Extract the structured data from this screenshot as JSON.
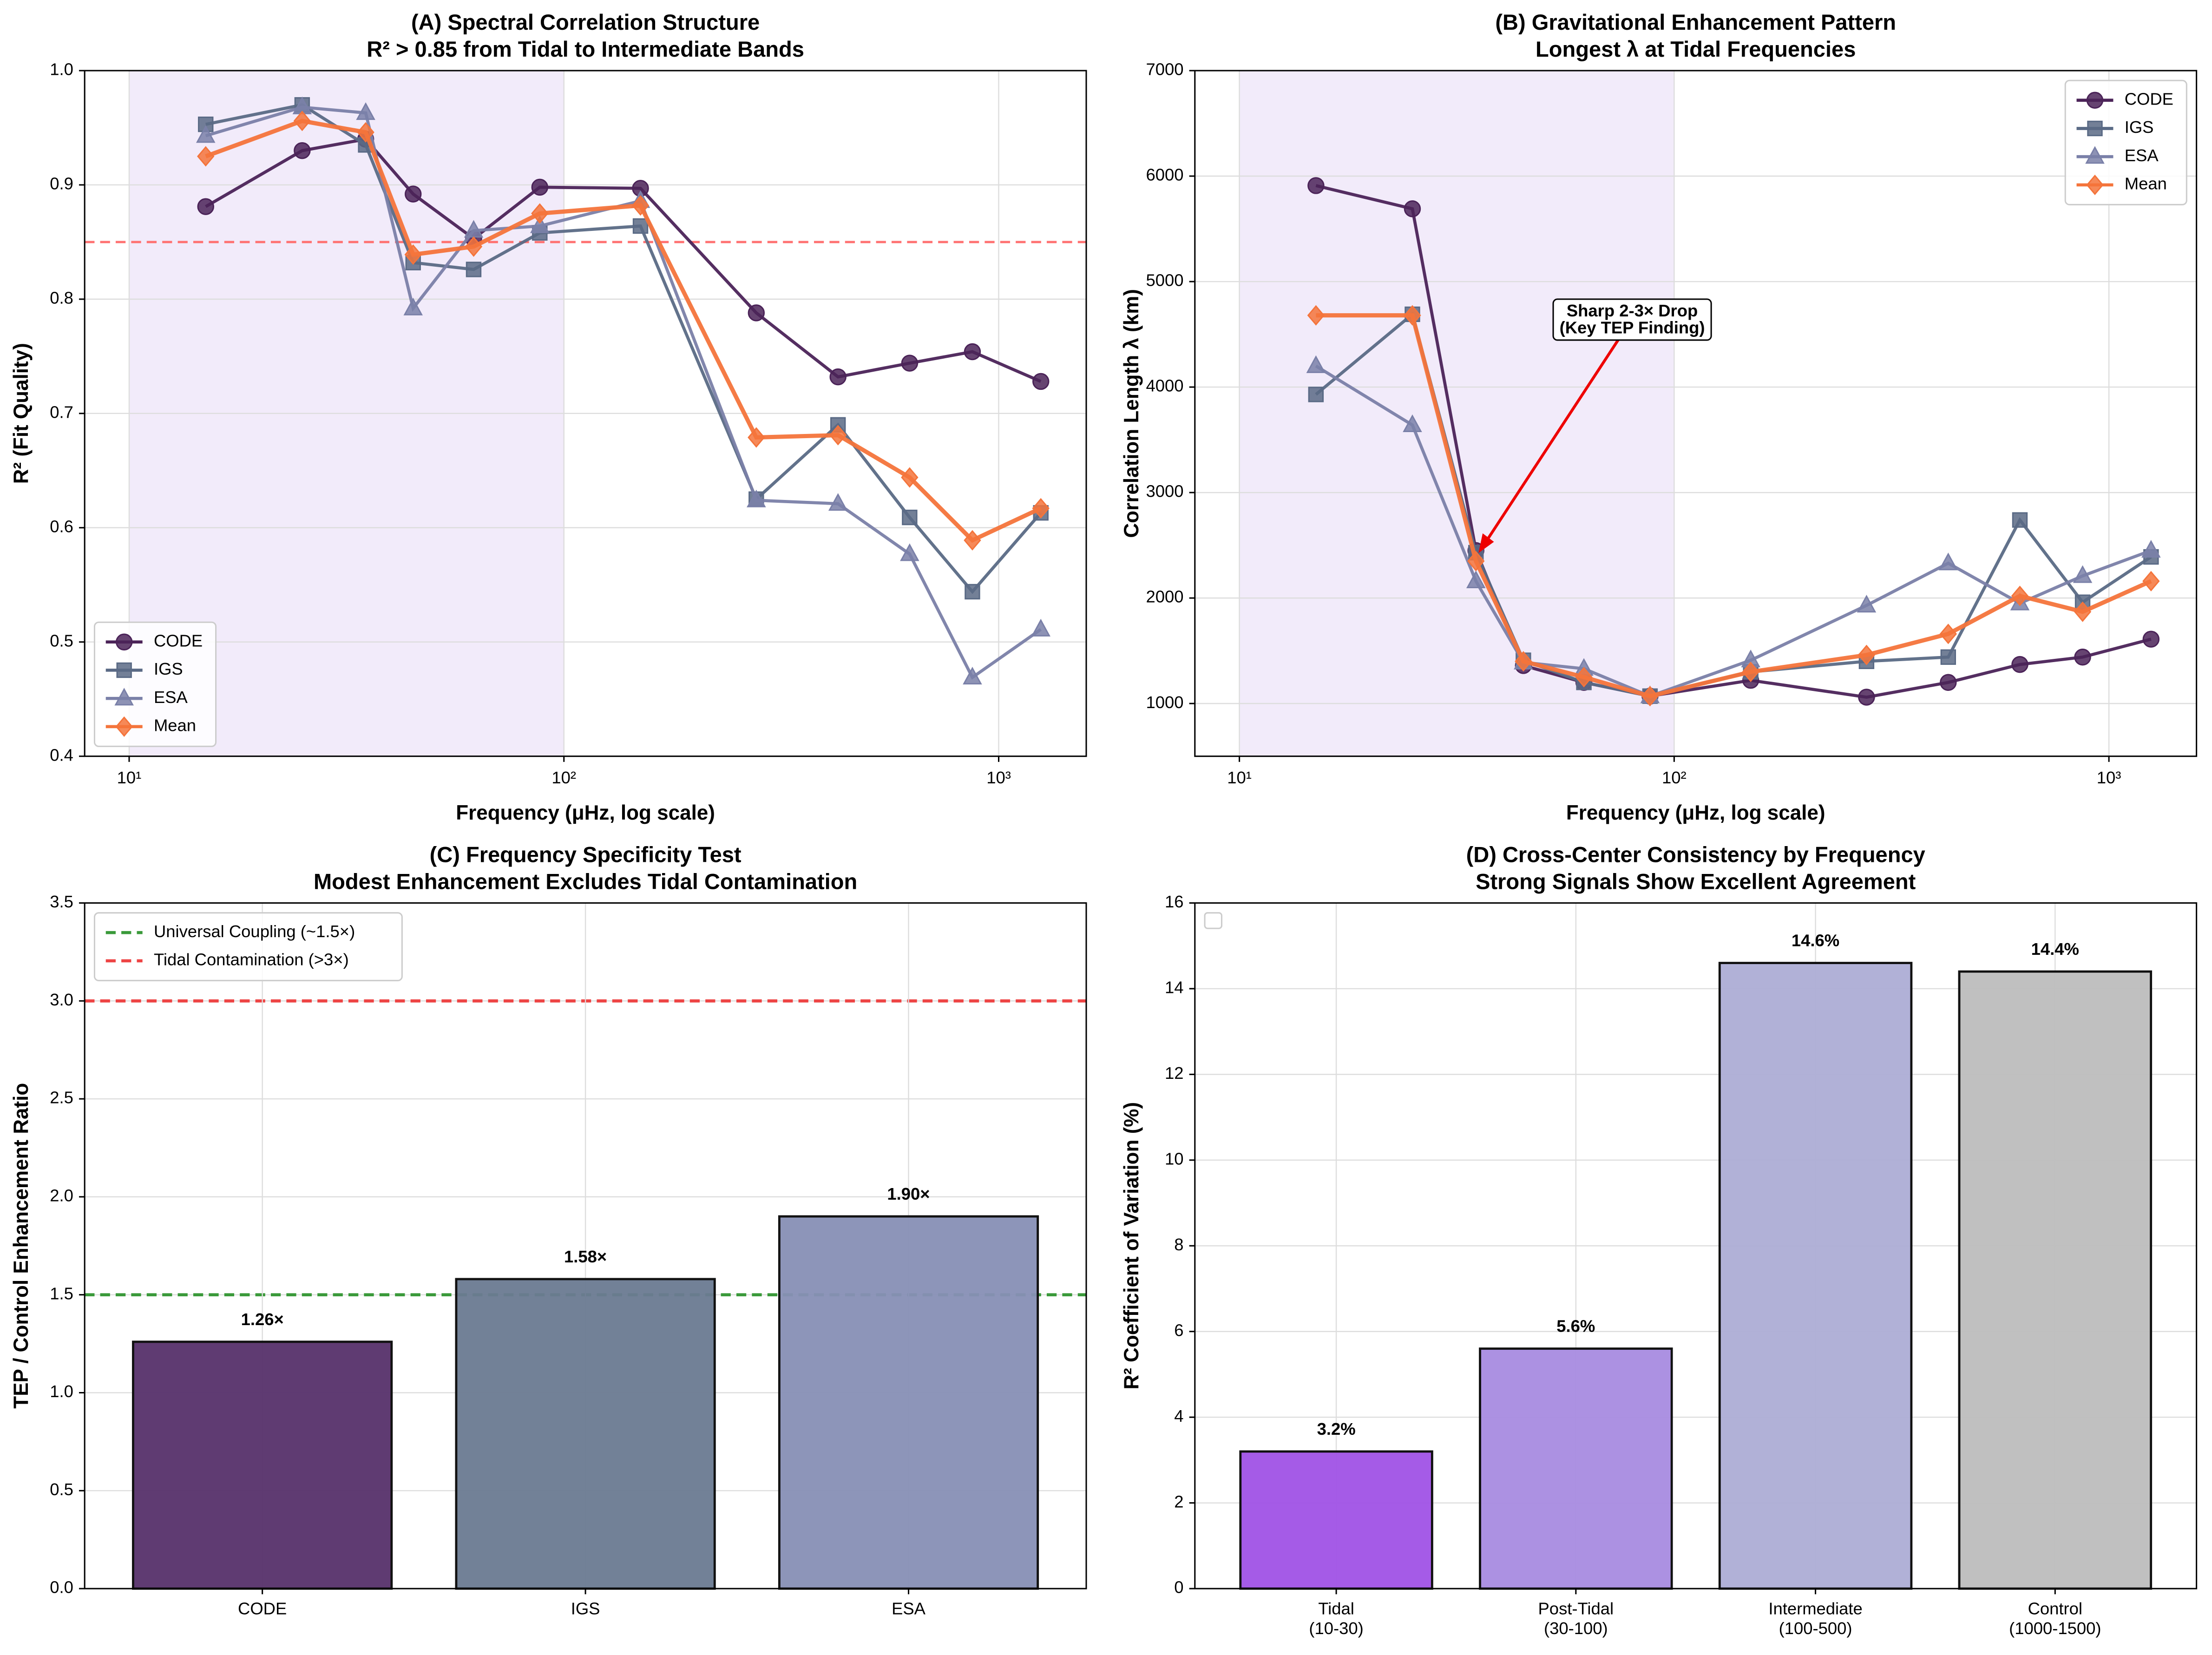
{
  "chart_data": [
    {
      "type": "line",
      "title": "(A) Spectral Correlation Structure",
      "subtitle": "R² > 0.85 from Tidal to Intermediate Bands",
      "xlabel": "Frequency (μHz, log scale)",
      "ylabel": "R² (Fit Quality)",
      "xscale": "log",
      "grid": true,
      "legend": "lower left",
      "x": [
        15,
        25,
        35,
        45,
        62,
        88,
        150,
        277,
        427,
        624,
        870,
        1250
      ],
      "series": [
        {
          "name": "CODE",
          "color": "#4b2358",
          "marker": "circle",
          "values": [
            0.881,
            0.93,
            0.94,
            0.892,
            0.853,
            0.898,
            0.897,
            0.788,
            0.732,
            0.744,
            0.754,
            0.728
          ]
        },
        {
          "name": "IGS",
          "color": "#5a6a85",
          "marker": "square",
          "values": [
            0.953,
            0.97,
            0.935,
            0.832,
            0.826,
            0.858,
            0.864,
            0.625,
            0.69,
            0.609,
            0.544,
            0.613
          ]
        },
        {
          "name": "ESA",
          "color": "#7a80a8",
          "marker": "triangle",
          "values": [
            0.943,
            0.968,
            0.963,
            0.792,
            0.86,
            0.864,
            0.886,
            0.624,
            0.621,
            0.577,
            0.469,
            0.511
          ]
        },
        {
          "name": "Mean",
          "color": "#f4743b",
          "marker": "diamond",
          "values": [
            0.925,
            0.956,
            0.946,
            0.839,
            0.846,
            0.875,
            0.882,
            0.679,
            0.681,
            0.644,
            0.589,
            0.617
          ]
        }
      ],
      "hlines": [
        {
          "value": 0.85,
          "color": "#ff7070"
        }
      ],
      "shaded_range": [
        10,
        100
      ],
      "xlim": [
        7.9,
        1590
      ],
      "xticks": [
        {
          "value": 10,
          "label": "10¹"
        },
        {
          "value": 100,
          "label": "10²"
        },
        {
          "value": 1000,
          "label": "10³"
        }
      ],
      "ylim": [
        0.4,
        1.0
      ],
      "yticks": [
        0.4,
        0.5,
        0.6,
        0.7,
        0.8,
        0.9,
        {
          "value": 1,
          "label": "1.0"
        }
      ]
    },
    {
      "type": "line",
      "title": "(B) Gravitational Enhancement Pattern",
      "subtitle": "Longest λ at Tidal Frequencies",
      "xlabel": "Frequency (μHz, log scale)",
      "ylabel": "Correlation Length λ (km)",
      "xscale": "log",
      "grid": true,
      "legend": "upper right",
      "x": [
        15,
        25,
        35,
        45,
        62,
        88,
        150,
        277,
        427,
        624,
        870,
        1250
      ],
      "series": [
        {
          "name": "CODE",
          "color": "#4b2358",
          "marker": "circle",
          "values": [
            5910,
            5690,
            2450,
            1360,
            1200,
            1070,
            1220,
            1060,
            1200,
            1370,
            1440,
            1610
          ]
        },
        {
          "name": "IGS",
          "color": "#5a6a85",
          "marker": "square",
          "values": [
            3930,
            4690,
            2430,
            1410,
            1200,
            1070,
            1300,
            1400,
            1440,
            2740,
            1960,
            2390
          ]
        },
        {
          "name": "ESA",
          "color": "#7a80a8",
          "marker": "triangle",
          "values": [
            4200,
            3640,
            2160,
            1390,
            1330,
            1070,
            1410,
            1930,
            2330,
            1950,
            2210,
            2450
          ]
        },
        {
          "name": "Mean",
          "color": "#f4743b",
          "marker": "diamond",
          "values": [
            4680,
            4680,
            2350,
            1400,
            1250,
            1070,
            1300,
            1460,
            1660,
            2020,
            1870,
            2160
          ]
        }
      ],
      "shaded_range": [
        10,
        100
      ],
      "annotation": "Sharp 2-3× Drop\n(Key TEP Finding)",
      "xlim": [
        7.9,
        1590
      ],
      "xticks": [
        {
          "value": 10,
          "label": "10¹"
        },
        {
          "value": 100,
          "label": "10²"
        },
        {
          "value": 1000,
          "label": "10³"
        }
      ],
      "ylim": [
        500,
        7000
      ],
      "yticks": [
        1000,
        2000,
        3000,
        4000,
        5000,
        6000,
        7000
      ]
    },
    {
      "type": "bar",
      "title": "(C) Frequency Specificity Test",
      "subtitle": "Modest Enhancement Excludes Tidal Contamination",
      "ylabel": "TEP / Control Enhancement Ratio",
      "grid": true,
      "legend": "upper left",
      "categories": [
        "CODE",
        "IGS",
        "ESA"
      ],
      "values": [
        1.26,
        1.58,
        1.9
      ],
      "value_labels": [
        "1.26×",
        "1.58×",
        "1.90×"
      ],
      "colors": [
        "#56306a",
        "#6a7a91",
        "#878fb5"
      ],
      "hlines": [
        {
          "name": "Universal Coupling (~1.5×)",
          "value": 1.5,
          "color": "#3a9a3a"
        },
        {
          "name": "Tidal Contamination (>3×)",
          "value": 3.0,
          "color": "#ee4444"
        }
      ],
      "ylim": [
        0,
        3.5
      ],
      "yticks": [
        {
          "value": 0,
          "label": "0.0"
        },
        0.5,
        {
          "value": 1,
          "label": "1.0"
        },
        1.5,
        {
          "value": 2,
          "label": "2.0"
        },
        2.5,
        {
          "value": 3,
          "label": "3.0"
        },
        3.5
      ]
    },
    {
      "type": "bar",
      "title": "(D) Cross-Center Consistency by Frequency",
      "subtitle": "Strong Signals Show Excellent Agreement",
      "ylabel": "R² Coefficient of Variation (%)",
      "grid": true,
      "categories": [
        "Tidal\n(10-30)",
        "Post-Tidal\n(30-100)",
        "Intermediate\n(100-500)",
        "Control\n(1000-1500)"
      ],
      "values": [
        3.2,
        5.6,
        14.6,
        14.4
      ],
      "value_labels": [
        "3.2%",
        "5.6%",
        "14.6%",
        "14.4%"
      ],
      "colors": [
        "#a052e6",
        "#a88be0",
        "#adadd5",
        "#bdbdbd"
      ],
      "ylim": [
        0,
        16
      ],
      "yticks": [
        0,
        2,
        4,
        6,
        8,
        10,
        12,
        14,
        16
      ]
    }
  ]
}
